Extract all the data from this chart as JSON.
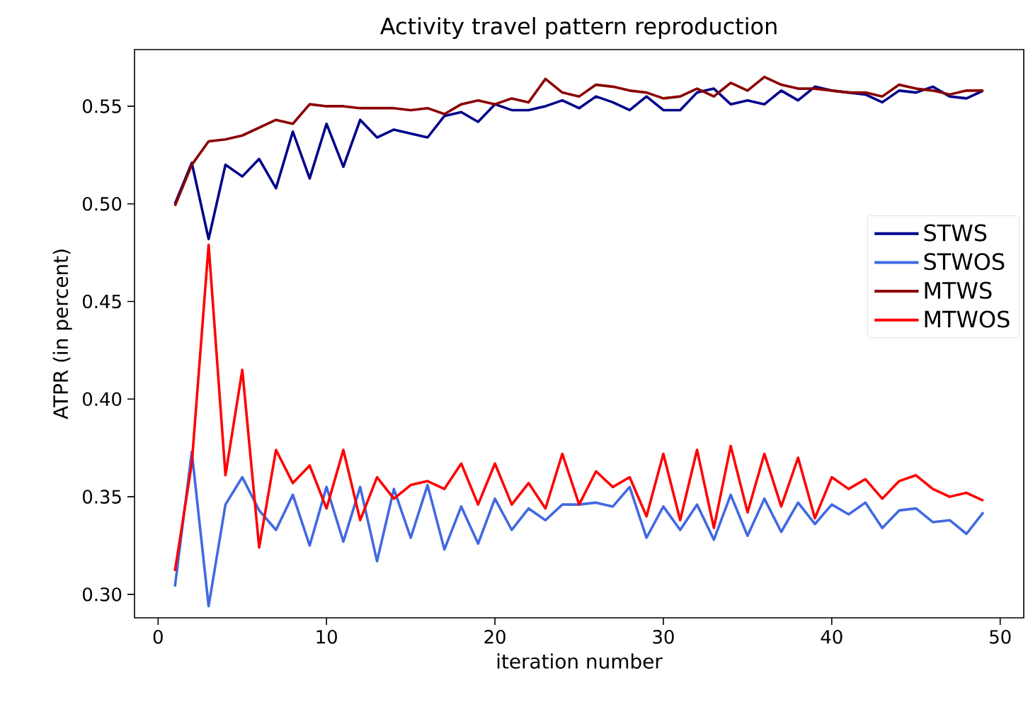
{
  "chart_data": {
    "type": "line",
    "title": "Activity travel pattern reproduction",
    "xlabel": "iteration number",
    "ylabel": "ATPR (in percent)",
    "x": [
      1,
      2,
      3,
      4,
      5,
      6,
      7,
      8,
      9,
      10,
      11,
      12,
      13,
      14,
      15,
      16,
      17,
      18,
      19,
      20,
      21,
      22,
      23,
      24,
      25,
      26,
      27,
      28,
      29,
      30,
      31,
      32,
      33,
      34,
      35,
      36,
      37,
      38,
      39,
      40,
      41,
      42,
      43,
      44,
      45,
      46,
      47,
      48,
      49
    ],
    "xlim": [
      -1.4,
      51.4
    ],
    "xticks": [
      0,
      10,
      20,
      30,
      40,
      50
    ],
    "ylim": [
      0.288,
      0.579
    ],
    "yticks": [
      {
        "value": 0.3,
        "label": "0.30"
      },
      {
        "value": 0.35,
        "label": "0.35"
      },
      {
        "value": 0.4,
        "label": "0.40"
      },
      {
        "value": 0.45,
        "label": "0.45"
      },
      {
        "value": 0.5,
        "label": "0.50"
      },
      {
        "value": 0.55,
        "label": "0.55"
      }
    ],
    "grid": false,
    "legend": "right",
    "series": [
      {
        "name": "STWS",
        "color": "#00008b",
        "values": [
          0.5,
          0.521,
          0.482,
          0.52,
          0.514,
          0.523,
          0.508,
          0.537,
          0.513,
          0.541,
          0.519,
          0.543,
          0.534,
          0.538,
          0.536,
          0.534,
          0.545,
          0.547,
          0.542,
          0.551,
          0.548,
          0.548,
          0.55,
          0.553,
          0.549,
          0.555,
          0.552,
          0.548,
          0.555,
          0.548,
          0.548,
          0.557,
          0.559,
          0.551,
          0.553,
          0.551,
          0.558,
          0.553,
          0.56,
          0.558,
          0.557,
          0.556,
          0.552,
          0.558,
          0.557,
          0.56,
          0.555,
          0.554,
          0.558
        ]
      },
      {
        "name": "STWOS",
        "color": "#4169e1",
        "values": [
          0.304,
          0.373,
          0.294,
          0.346,
          0.36,
          0.343,
          0.333,
          0.351,
          0.325,
          0.355,
          0.327,
          0.355,
          0.317,
          0.354,
          0.329,
          0.356,
          0.323,
          0.345,
          0.326,
          0.349,
          0.333,
          0.344,
          0.338,
          0.346,
          0.346,
          0.347,
          0.345,
          0.355,
          0.329,
          0.345,
          0.333,
          0.346,
          0.328,
          0.351,
          0.33,
          0.349,
          0.332,
          0.347,
          0.336,
          0.346,
          0.341,
          0.347,
          0.334,
          0.343,
          0.344,
          0.337,
          0.338,
          0.331,
          0.342
        ]
      },
      {
        "name": "MTWS",
        "color": "#8b0000",
        "values": [
          0.499,
          0.52,
          0.532,
          0.533,
          0.535,
          0.539,
          0.543,
          0.541,
          0.551,
          0.55,
          0.55,
          0.549,
          0.549,
          0.549,
          0.548,
          0.549,
          0.546,
          0.551,
          0.553,
          0.551,
          0.554,
          0.552,
          0.564,
          0.557,
          0.555,
          0.561,
          0.56,
          0.558,
          0.557,
          0.554,
          0.555,
          0.559,
          0.555,
          0.562,
          0.558,
          0.565,
          0.561,
          0.559,
          0.559,
          0.558,
          0.557,
          0.557,
          0.555,
          0.561,
          0.559,
          0.558,
          0.556,
          0.558,
          0.558
        ]
      },
      {
        "name": "MTWOS",
        "color": "#ff0000",
        "values": [
          0.312,
          0.367,
          0.479,
          0.361,
          0.415,
          0.324,
          0.374,
          0.357,
          0.366,
          0.344,
          0.374,
          0.338,
          0.36,
          0.349,
          0.356,
          0.358,
          0.354,
          0.367,
          0.346,
          0.367,
          0.346,
          0.357,
          0.344,
          0.372,
          0.346,
          0.363,
          0.355,
          0.36,
          0.34,
          0.372,
          0.338,
          0.374,
          0.334,
          0.376,
          0.342,
          0.372,
          0.345,
          0.37,
          0.339,
          0.36,
          0.354,
          0.359,
          0.349,
          0.358,
          0.361,
          0.354,
          0.35,
          0.352,
          0.348
        ]
      }
    ]
  }
}
